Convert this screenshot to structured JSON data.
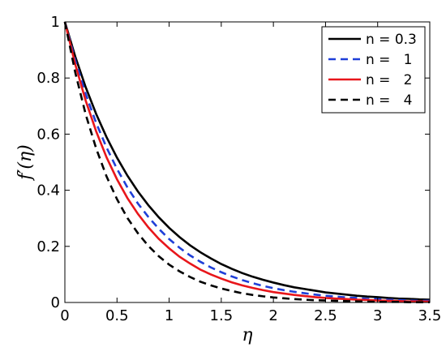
{
  "chart_data": {
    "type": "line",
    "xlabel": "η",
    "ylabel": "f′(η)",
    "xlim": [
      0,
      3.5
    ],
    "ylim": [
      0,
      1
    ],
    "xticks": [
      0,
      0.5,
      1,
      1.5,
      2,
      2.5,
      3,
      3.5
    ],
    "xtick_labels": [
      "0",
      "0.5",
      "1",
      "1.5",
      "2",
      "2.5",
      "3",
      "3.5"
    ],
    "yticks": [
      0,
      0.2,
      0.4,
      0.6,
      0.8,
      1
    ],
    "ytick_labels": [
      "0",
      "0.2",
      "0.4",
      "0.6",
      "0.8",
      "1"
    ],
    "grid": false,
    "legend_position": "top-right",
    "x": [
      0,
      0.1,
      0.2,
      0.3,
      0.4,
      0.5,
      0.6,
      0.7,
      0.8,
      0.9,
      1.0,
      1.1,
      1.2,
      1.3,
      1.4,
      1.5,
      1.6,
      1.7,
      1.8,
      1.9,
      2.0,
      2.1,
      2.2,
      2.3,
      2.4,
      2.5,
      2.6,
      2.7,
      2.8,
      2.9,
      3.0,
      3.1,
      3.2,
      3.3,
      3.4,
      3.5
    ],
    "series": [
      {
        "name": "n = 0.3",
        "color": "#000000",
        "dash": "solid",
        "values": [
          1.0,
          0.876,
          0.767,
          0.672,
          0.589,
          0.516,
          0.452,
          0.396,
          0.347,
          0.304,
          0.266,
          0.233,
          0.204,
          0.179,
          0.157,
          0.137,
          0.12,
          0.105,
          0.092,
          0.081,
          0.071,
          0.062,
          0.054,
          0.048,
          0.042,
          0.036,
          0.032,
          0.028,
          0.024,
          0.021,
          0.019,
          0.016,
          0.014,
          0.013,
          0.011,
          0.01
        ]
      },
      {
        "name": "n =   1",
        "color": "#1f3fd8",
        "dash": "dashed",
        "values": [
          1.0,
          0.862,
          0.743,
          0.64,
          0.552,
          0.476,
          0.41,
          0.353,
          0.305,
          0.263,
          0.226,
          0.195,
          0.168,
          0.145,
          0.125,
          0.108,
          0.093,
          0.08,
          0.069,
          0.059,
          0.051,
          0.044,
          0.038,
          0.033,
          0.028,
          0.024,
          0.021,
          0.018,
          0.016,
          0.013,
          0.012,
          0.01,
          0.009,
          0.007,
          0.006,
          0.006
        ]
      },
      {
        "name": "n =   2",
        "color": "#e8161b",
        "dash": "solid",
        "values": [
          1.0,
          0.848,
          0.719,
          0.61,
          0.517,
          0.439,
          0.372,
          0.316,
          0.268,
          0.227,
          0.193,
          0.163,
          0.139,
          0.117,
          0.1,
          0.085,
          0.072,
          0.061,
          0.052,
          0.044,
          0.037,
          0.032,
          0.027,
          0.023,
          0.019,
          0.016,
          0.014,
          0.012,
          0.01,
          0.009,
          0.007,
          0.006,
          0.005,
          0.004,
          0.004,
          0.003
        ]
      },
      {
        "name": "n =   4",
        "color": "#000000",
        "dash": "dashed",
        "values": [
          1.0,
          0.819,
          0.67,
          0.549,
          0.449,
          0.368,
          0.301,
          0.247,
          0.202,
          0.165,
          0.135,
          0.111,
          0.091,
          0.074,
          0.061,
          0.05,
          0.041,
          0.033,
          0.027,
          0.022,
          0.018,
          0.015,
          0.012,
          0.01,
          0.008,
          0.007,
          0.006,
          0.005,
          0.004,
          0.003,
          0.002,
          0.002,
          0.002,
          0.001,
          0.001,
          0.001
        ]
      }
    ]
  }
}
